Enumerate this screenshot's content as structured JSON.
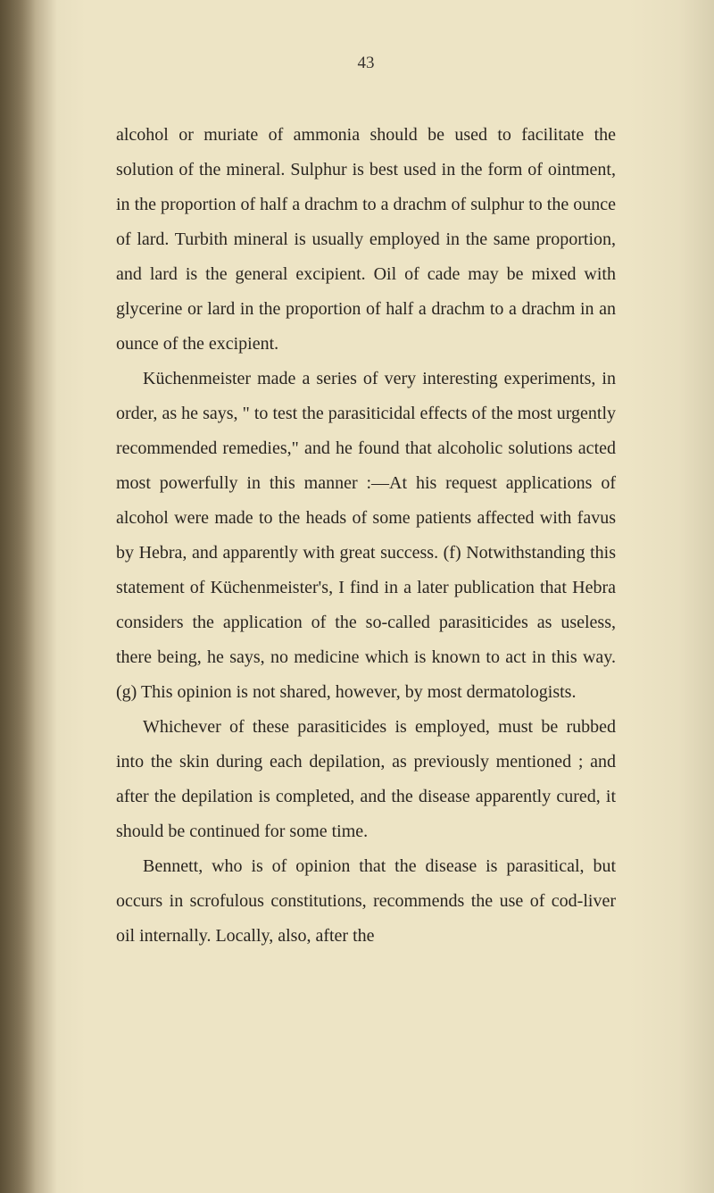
{
  "page": {
    "number": "43",
    "background_color": "#ede4c5",
    "text_color": "#2a2520",
    "font_family": "Georgia, serif",
    "font_size_pt": 15,
    "line_height": 1.95,
    "paragraphs": [
      {
        "indent": false,
        "text": "alcohol or muriate of ammonia should be used to facilitate the solution of the mineral. Sulphur is best used in the form of ointment, in the proportion of half a drachm to a drachm of sulphur to the ounce of lard. Turbith mineral is usually employed in the same proportion, and lard is the general excipient. Oil of cade may be mixed with glycerine or lard in the proportion of half a drachm to a drachm in an ounce of the excipient."
      },
      {
        "indent": true,
        "text": "Küchenmeister made a series of very interesting experiments, in order, as he says, \" to test the parasiticidal effects of the most urgently recommended remedies,\" and he found that alcoholic solutions acted most powerfully in this manner :—At his request applications of alcohol were made to the heads of some patients affected with favus by Hebra, and apparently with great success. (f) Notwithstanding this statement of Küchenmeister's, I find in a later publication that Hebra considers the application of the so-called parasiticides as useless, there being, he says, no medicine which is known to act in this way. (g) This opinion is not shared, however, by most dermatologists."
      },
      {
        "indent": true,
        "text": "Whichever of these parasiticides is employed, must be rubbed into the skin during each depilation, as previously mentioned ; and after the depilation is completed, and the disease apparently cured, it should be continued for some time."
      },
      {
        "indent": true,
        "text": "Bennett, who is of opinion that the disease is parasitical, but occurs in scrofulous constitutions, recommends the use of cod-liver oil internally. Locally, also, after the"
      }
    ]
  }
}
